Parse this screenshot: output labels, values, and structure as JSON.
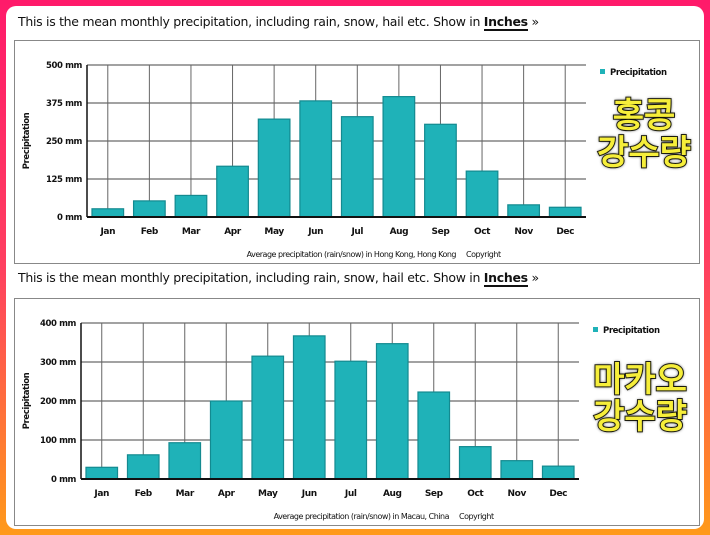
{
  "charts_header": {
    "intro_text": "This is the mean monthly precipitation, including rain, snow, hail etc. Show in ",
    "unit_link": "Inches",
    "unit_arrow": "»"
  },
  "overlays": {
    "hong_kong": "홍콩 강수량",
    "macau": "마카오 강수량"
  },
  "colors": {
    "bar": "#1fb2b8",
    "bar_edge": "#138a90",
    "border_top": "#ff1a6a",
    "border_bottom": "#ff9a1a",
    "overlay_text": "#f6ee3a"
  },
  "chart_data": [
    {
      "type": "bar",
      "title": "",
      "xlabel": "Average precipitation (rain/snow) in Hong Kong, Hong Kong",
      "copyright": "Copyright",
      "ylabel": "Precipitation",
      "legend": {
        "label": "Precipitation",
        "position": "top-right"
      },
      "categories": [
        "Jan",
        "Feb",
        "Mar",
        "Apr",
        "May",
        "Jun",
        "Jul",
        "Aug",
        "Sep",
        "Oct",
        "Nov",
        "Dec"
      ],
      "series": [
        {
          "name": "Precipitation",
          "values": [
            27,
            53,
            71,
            167,
            322,
            382,
            330,
            396,
            305,
            151,
            40,
            32
          ]
        }
      ],
      "ylim": [
        0,
        500
      ],
      "yticks": [
        0,
        125,
        250,
        375,
        500
      ],
      "ytick_labels": [
        "0 mm",
        "125 mm",
        "250 mm",
        "375 mm",
        "500 mm"
      ],
      "grid": true
    },
    {
      "type": "bar",
      "title": "",
      "xlabel": "Average precipitation (rain/snow) in Macau, China",
      "copyright": "Copyright",
      "ylabel": "Precipitation",
      "legend": {
        "label": "Precipitation",
        "position": "top-right"
      },
      "categories": [
        "Jan",
        "Feb",
        "Mar",
        "Apr",
        "May",
        "Jun",
        "Jul",
        "Aug",
        "Sep",
        "Oct",
        "Nov",
        "Dec"
      ],
      "series": [
        {
          "name": "Precipitation",
          "values": [
            30,
            62,
            93,
            200,
            315,
            367,
            302,
            347,
            223,
            83,
            47,
            33
          ]
        }
      ],
      "ylim": [
        0,
        400
      ],
      "yticks": [
        0,
        100,
        200,
        300,
        400
      ],
      "ytick_labels": [
        "0 mm",
        "100 mm",
        "200 mm",
        "300 mm",
        "400 mm"
      ],
      "grid": true
    }
  ]
}
